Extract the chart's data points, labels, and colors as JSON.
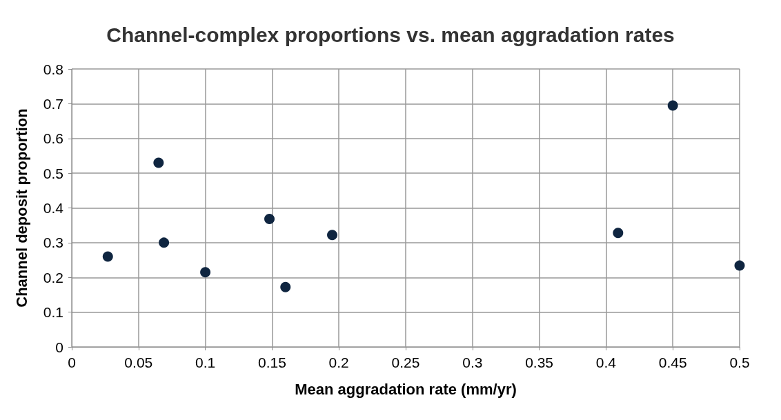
{
  "chart_data": {
    "type": "scatter",
    "title": "Channel-complex proportions vs. mean aggradation rates",
    "xlabel": "Mean aggradation rate (mm/yr)",
    "ylabel": "Channel deposit proportion",
    "x": [
      0.027,
      0.065,
      0.069,
      0.1,
      0.148,
      0.16,
      0.195,
      0.409,
      0.45,
      0.5
    ],
    "values": [
      0.26,
      0.53,
      0.3,
      0.215,
      0.368,
      0.172,
      0.322,
      0.328,
      0.695,
      0.234
    ],
    "color": "#0f2540",
    "marker": "circle",
    "grid": true,
    "xlim": [
      0,
      0.5
    ],
    "xticks": [
      0,
      0.05,
      0.1,
      0.15,
      0.2,
      0.25,
      0.3,
      0.35,
      0.4,
      0.45,
      0.5
    ],
    "ylim": [
      0,
      0.8
    ],
    "yticks": [
      0,
      0.1,
      0.2,
      0.3,
      0.4,
      0.5,
      0.6,
      0.7,
      0.8
    ]
  }
}
